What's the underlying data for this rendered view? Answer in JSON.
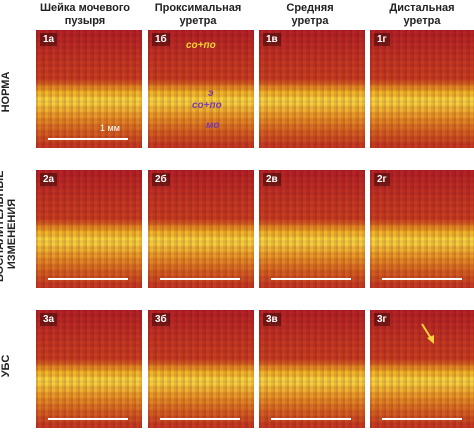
{
  "columns": [
    "Шейка мочевого\nпузыря",
    "Проксимальная\nуретра",
    "Средняя\nуретра",
    "Дистальная\nуретра"
  ],
  "rows": [
    "НОРМА",
    "ВОСПАЛИТЕЛЬНЫЕ\nИЗМЕНЕНИЯ",
    "УБС"
  ],
  "panels": [
    "1а",
    "1б",
    "1в",
    "1г",
    "2а",
    "2б",
    "2в",
    "2г",
    "3а",
    "3б",
    "3в",
    "3г"
  ],
  "annotations": {
    "co_po_top": "со+по",
    "e": "э",
    "co_po_mid": "со+по",
    "mo": "мо"
  },
  "scale_label": "1 мм",
  "colors": {
    "yellow": "#f6d23a",
    "purple": "#7a3aa8",
    "tissue_dark": "#b5222a",
    "tissue_bright": "#f8e24a"
  }
}
